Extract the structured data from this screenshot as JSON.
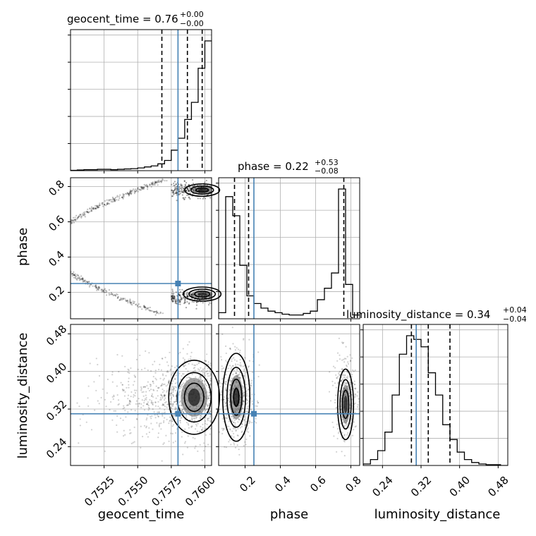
{
  "chart_data": {
    "type": "corner",
    "parameters": [
      "geocent_time",
      "phase",
      "luminosity_distance"
    ],
    "truths": {
      "geocent_time": 0.758,
      "phase": 0.25,
      "luminosity_distance": 0.31
    },
    "truth_color": "#4682b4",
    "axis_ranges": {
      "geocent_time": [
        0.75,
        0.7605
      ],
      "phase": [
        0.05,
        0.85
      ],
      "luminosity_distance": [
        0.2,
        0.5
      ]
    },
    "ticks": {
      "geocent_time": [
        0.7525,
        0.755,
        0.7575,
        0.76
      ],
      "phase": [
        0.2,
        0.4,
        0.6,
        0.8
      ],
      "luminosity_distance": [
        0.24,
        0.32,
        0.4,
        0.48
      ]
    },
    "tick_labels": {
      "geocent_time": [
        "0.7525",
        "0.7550",
        "0.7575",
        "0.7600"
      ],
      "phase": [
        "0.2",
        "0.4",
        "0.6",
        "0.8"
      ],
      "luminosity_distance": [
        "0.24",
        "0.32",
        "0.40",
        "0.48"
      ]
    },
    "titles": {
      "geocent_time": {
        "main": "geocent_time = 0.76",
        "plus": "+0.00",
        "minus": "−0.00"
      },
      "phase": {
        "main": "phase = 0.22",
        "plus": "+0.53",
        "minus": "−0.08"
      },
      "luminosity_distance": {
        "main": "luminosity_distance = 0.34",
        "plus": "+0.04",
        "minus": "−0.04"
      }
    },
    "quantile_lines": {
      "geocent_time": [
        0.7568,
        0.7587,
        0.7598
      ],
      "phase": [
        0.14,
        0.22,
        0.76
      ],
      "luminosity_distance": [
        0.3,
        0.335,
        0.38
      ]
    },
    "histograms": {
      "geocent_time": {
        "edges_start": 0.75,
        "bin_width": 0.0005,
        "counts": [
          1,
          2,
          3,
          3,
          4,
          4,
          3,
          4,
          5,
          6,
          8,
          11,
          14,
          20,
          30,
          60,
          95,
          150,
          200,
          300,
          380
        ]
      },
      "phase": {
        "edges_start": 0.05,
        "bin_width": 0.04,
        "counts": [
          8,
          160,
          135,
          70,
          30,
          20,
          14,
          10,
          8,
          6,
          5,
          5,
          7,
          10,
          25,
          40,
          60,
          170,
          45,
          5
        ]
      },
      "luminosity_distance": {
        "edges_start": 0.2,
        "bin_width": 0.015,
        "counts": [
          2,
          8,
          20,
          45,
          95,
          150,
          175,
          170,
          160,
          125,
          95,
          55,
          35,
          18,
          8,
          4,
          2,
          1,
          1,
          0
        ]
      }
    },
    "grid": true
  }
}
